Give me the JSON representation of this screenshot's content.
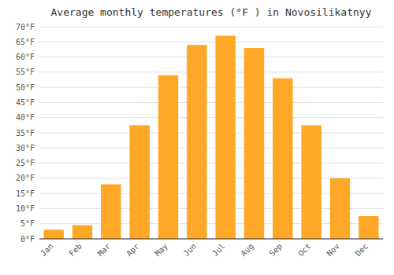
{
  "chart_data": {
    "type": "bar",
    "title": "Average monthly temperatures (°F ) in Novosilikatnyy",
    "categories": [
      "Jan",
      "Feb",
      "Mar",
      "Apr",
      "May",
      "Jun",
      "Jul",
      "Aug",
      "Sep",
      "Oct",
      "Nov",
      "Dec"
    ],
    "values": [
      3,
      4.5,
      18,
      37.5,
      54,
      64,
      67,
      63,
      53,
      37.5,
      20,
      7.5
    ],
    "color": "#FFA726",
    "ylim": [
      0,
      70
    ],
    "yticks": [
      {
        "value": 0,
        "label": "0°F"
      },
      {
        "value": 5,
        "label": "5°F"
      },
      {
        "value": 10,
        "label": "10°F"
      },
      {
        "value": 15,
        "label": "15°F"
      },
      {
        "value": 20,
        "label": "20°F"
      },
      {
        "value": 25,
        "label": "25°F"
      },
      {
        "value": 30,
        "label": "30°F"
      },
      {
        "value": 35,
        "label": "35°F"
      },
      {
        "value": 40,
        "label": "40°F"
      },
      {
        "value": 45,
        "label": "45°F"
      },
      {
        "value": 50,
        "label": "50°F"
      },
      {
        "value": 55,
        "label": "55°F"
      },
      {
        "value": 60,
        "label": "60°F"
      },
      {
        "value": 65,
        "label": "65°F"
      },
      {
        "value": 70,
        "label": "70°F"
      }
    ],
    "grid": true
  }
}
